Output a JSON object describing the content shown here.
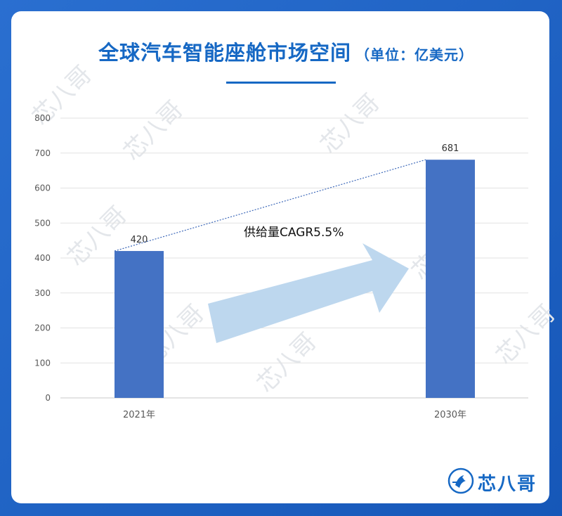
{
  "header": {
    "title": "全球汽车智能座舱市场空间",
    "unit": "（单位：亿美元）"
  },
  "chart_data": {
    "type": "bar",
    "categories": [
      "2021年",
      "2030年"
    ],
    "values": [
      420,
      681
    ],
    "ylim": [
      0,
      800
    ],
    "yticks": [
      0,
      100,
      200,
      300,
      400,
      500,
      600,
      700,
      800
    ],
    "grid": true,
    "annotation": "供给量CAGR5.5%",
    "colors": {
      "bar": "#4472c4",
      "arrow": "#bdd7ee",
      "trend": "#3a66b8"
    }
  },
  "brand": {
    "name": "芯八哥",
    "icon": "bird-logo-icon"
  },
  "watermark": "芯八哥"
}
